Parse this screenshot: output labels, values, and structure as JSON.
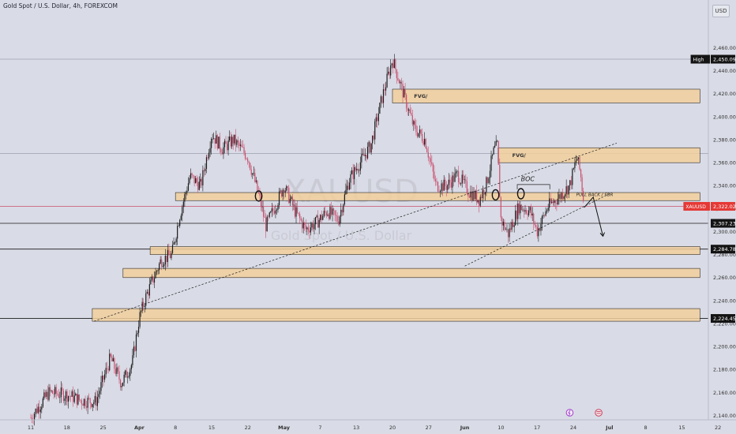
{
  "header": {
    "symbol_text": "Gold Spot / U.S. Dollar, 4h, FOREXCOM",
    "currency_button": "USD"
  },
  "watermark": {
    "ticker": "XAUUSD",
    "name": "Gold Spot / U.S. Dollar"
  },
  "colors": {
    "background": "#d9dbe6",
    "candle_up": "#1c1c1c",
    "candle_down": "#c9506e",
    "zone_fill": "#f1cf9b",
    "zone_stroke": "#2b2b2b",
    "price_tag": "#e53935"
  },
  "chart_data": {
    "type": "candlestick",
    "symbol": "XAUUSD",
    "timeframe": "4h",
    "exchange": "FOREXCOM",
    "y_ticks": [
      2140,
      2160,
      2180,
      2200,
      2220,
      2240,
      2260,
      2280,
      2300,
      2320,
      2340,
      2360,
      2380,
      2400,
      2420,
      2440,
      2460
    ],
    "ylim": [
      2135,
      2475
    ],
    "x_ticks": [
      {
        "label": "11",
        "x": 0
      },
      {
        "label": "18",
        "x": 1
      },
      {
        "label": "25",
        "x": 2
      },
      {
        "label": "Apr",
        "x": 3,
        "bold": true
      },
      {
        "label": "8",
        "x": 4
      },
      {
        "label": "15",
        "x": 5
      },
      {
        "label": "22",
        "x": 6
      },
      {
        "label": "May",
        "x": 7,
        "bold": true
      },
      {
        "label": "7",
        "x": 8
      },
      {
        "label": "13",
        "x": 9
      },
      {
        "label": "20",
        "x": 10
      },
      {
        "label": "27",
        "x": 11
      },
      {
        "label": "Jun",
        "x": 12,
        "bold": true
      },
      {
        "label": "10",
        "x": 13
      },
      {
        "label": "17",
        "x": 14
      },
      {
        "label": "24",
        "x": 15
      },
      {
        "label": "Jul",
        "x": 16,
        "bold": true
      },
      {
        "label": "8",
        "x": 17
      },
      {
        "label": "15",
        "x": 18
      },
      {
        "label": "22",
        "x": 19
      }
    ],
    "price_tags": [
      {
        "label": "High",
        "value": "2,450.09",
        "price": 2450.09,
        "style": "dark"
      },
      {
        "label": "XAUUSD",
        "value": "2,322.02",
        "price": 2322.02,
        "style": "red"
      },
      {
        "label": "",
        "value": "2,307.23",
        "price": 2307.23,
        "style": "dark"
      },
      {
        "label": "",
        "value": "2,284.78",
        "price": 2284.78,
        "style": "dark"
      },
      {
        "label": "",
        "value": "2,224.45",
        "price": 2224.45,
        "style": "dark"
      }
    ],
    "horizontal_lines": [
      {
        "price": 2450.09,
        "color": "#9aa0b0"
      },
      {
        "price": 2368,
        "color": "#9aa0b0"
      },
      {
        "price": 2322.02,
        "color": "#c9506e"
      },
      {
        "price": 2307.23,
        "color": "#1a1a1a"
      },
      {
        "price": 2284.78,
        "color": "#1a1a1a"
      },
      {
        "price": 2224.45,
        "color": "#1a1a1a"
      }
    ],
    "zones": [
      {
        "x0": 10.0,
        "x1": 18.5,
        "top": 2424,
        "bottom": 2412,
        "label": "FVG/"
      },
      {
        "x0": 12.92,
        "x1": 18.5,
        "top": 2373,
        "bottom": 2360,
        "label": "FVG/"
      },
      {
        "x0": 4.0,
        "x1": 18.5,
        "top": 2334,
        "bottom": 2327,
        "label": ""
      },
      {
        "x0": 3.3,
        "x1": 18.5,
        "top": 2287,
        "bottom": 2280,
        "label": ""
      },
      {
        "x0": 2.55,
        "x1": 18.5,
        "top": 2268,
        "bottom": 2260,
        "label": ""
      },
      {
        "x0": 1.7,
        "x1": 18.5,
        "top": 2233,
        "bottom": 2222,
        "label": ""
      }
    ],
    "trendlines": [
      {
        "x0": 1.75,
        "p0": 2222,
        "x1": 16.2,
        "p1": 2377,
        "dash": true
      },
      {
        "x0": 12.0,
        "p0": 2270,
        "x1": 16.0,
        "p1": 2333,
        "dash": true
      }
    ],
    "annotations": [
      {
        "text": "BOC",
        "x": 13.55,
        "price": 2344,
        "italic": true,
        "size": 8
      },
      {
        "text": "PULL BACK / SBR",
        "x": 15.08,
        "price": 2331,
        "italic": true,
        "size": 5.5
      }
    ],
    "circles": [
      {
        "x": 6.3,
        "price": 2331
      },
      {
        "x": 12.85,
        "price": 2332
      },
      {
        "x": 13.55,
        "price": 2333
      }
    ],
    "path_waypoints": [
      [
        0,
        2138
      ],
      [
        0.5,
        2160
      ],
      [
        1,
        2158
      ],
      [
        1.4,
        2153
      ],
      [
        1.8,
        2152
      ],
      [
        2.2,
        2190
      ],
      [
        2.5,
        2168
      ],
      [
        2.8,
        2185
      ],
      [
        3.0,
        2225
      ],
      [
        3.2,
        2245
      ],
      [
        3.6,
        2275
      ],
      [
        3.9,
        2280
      ],
      [
        4.1,
        2312
      ],
      [
        4.4,
        2348
      ],
      [
        4.7,
        2340
      ],
      [
        5.0,
        2385
      ],
      [
        5.3,
        2372
      ],
      [
        5.6,
        2380
      ],
      [
        6.0,
        2365
      ],
      [
        6.3,
        2332
      ],
      [
        6.5,
        2305
      ],
      [
        6.8,
        2325
      ],
      [
        7.0,
        2340
      ],
      [
        7.3,
        2318
      ],
      [
        7.6,
        2302
      ],
      [
        7.9,
        2308
      ],
      [
        8.2,
        2318
      ],
      [
        8.5,
        2310
      ],
      [
        8.8,
        2345
      ],
      [
        9.1,
        2360
      ],
      [
        9.4,
        2375
      ],
      [
        9.7,
        2415
      ],
      [
        10.0,
        2450
      ],
      [
        10.3,
        2420
      ],
      [
        10.6,
        2390
      ],
      [
        10.9,
        2380
      ],
      [
        11.2,
        2340
      ],
      [
        11.5,
        2340
      ],
      [
        11.8,
        2350
      ],
      [
        12.1,
        2335
      ],
      [
        12.4,
        2328
      ],
      [
        12.6,
        2342
      ],
      [
        12.8,
        2370
      ],
      [
        12.9,
        2375
      ],
      [
        13.0,
        2310
      ],
      [
        13.2,
        2298
      ],
      [
        13.5,
        2322
      ],
      [
        13.8,
        2318
      ],
      [
        14.0,
        2300
      ],
      [
        14.3,
        2322
      ],
      [
        14.6,
        2330
      ],
      [
        14.9,
        2340
      ],
      [
        15.1,
        2365
      ],
      [
        15.2,
        2350
      ],
      [
        15.3,
        2322
      ]
    ],
    "projection_arrow": {
      "x0": 15.3,
      "p0": 2321,
      "x_mid": 15.55,
      "p_mid": 2330,
      "x1": 15.82,
      "p1": 2296
    }
  }
}
